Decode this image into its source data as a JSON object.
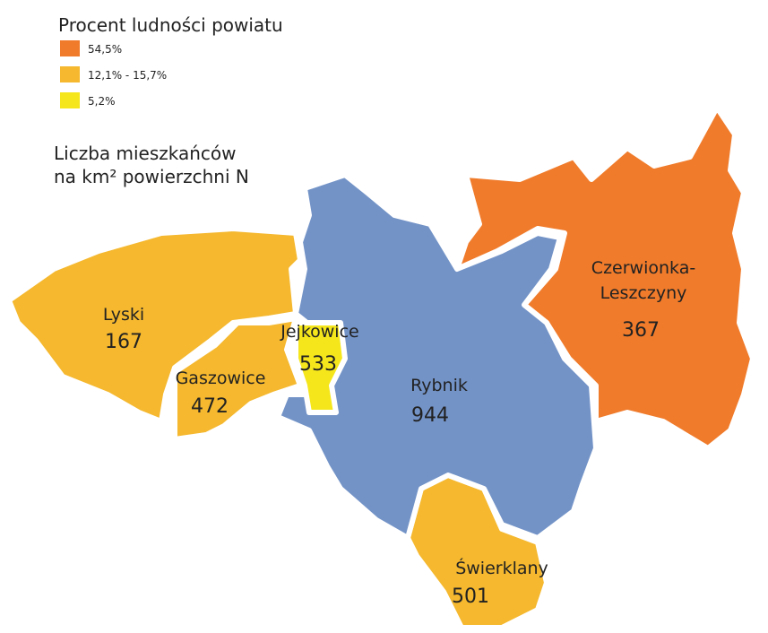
{
  "legend": {
    "title": "Procent ludności powiatu",
    "items": [
      {
        "label": "54,5%",
        "color": "#f07b2b"
      },
      {
        "label": "12,1% - 15,7%",
        "color": "#f5b82e"
      },
      {
        "label": "5,2%",
        "color": "#f5e61c"
      }
    ]
  },
  "subtitle": [
    "Liczba mieszkańców",
    "na km² powierzchni N"
  ],
  "regions": [
    {
      "name": "Rybnik",
      "density": "944",
      "color": "#7393c7"
    },
    {
      "name": [
        "Czerwionka-",
        "Leszczyny"
      ],
      "density": "367",
      "color": "#f07b2b"
    },
    {
      "name": "Lyski",
      "density": "167",
      "color": "#f5b82e"
    },
    {
      "name": "Gaszowice",
      "density": "472",
      "color": "#f5b82e"
    },
    {
      "name": "Jejkowice",
      "density": "533",
      "color": "#f5e61c"
    },
    {
      "name": "Świerklany",
      "density": "501",
      "color": "#f5b82e"
    }
  ]
}
